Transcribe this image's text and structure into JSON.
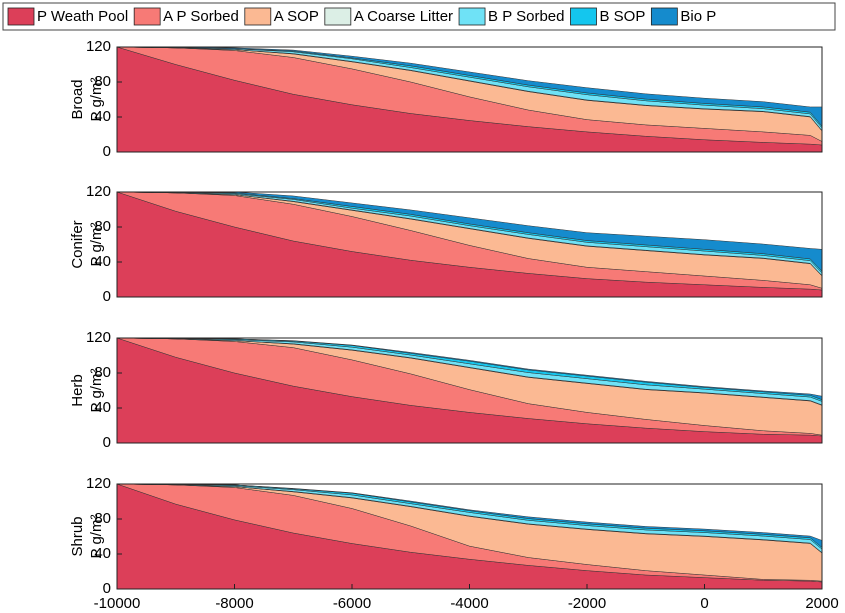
{
  "chart_data": [
    {
      "type": "area",
      "ylabel": "Broad",
      "yunit": "P g/m²",
      "x": [
        -10000,
        -9000,
        -8000,
        -7000,
        -6000,
        -5000,
        -4000,
        -3000,
        -2000,
        -1000,
        0,
        1000,
        1800,
        2000
      ],
      "xlim": [
        -10000,
        2000
      ],
      "ylim": [
        0,
        120
      ],
      "yticks": [
        0,
        40,
        80,
        120
      ],
      "series": [
        {
          "name": "P Weath Pool",
          "color": "#dc3f59",
          "values": [
            120,
            100,
            82,
            66,
            54,
            44,
            36,
            29,
            23,
            18,
            14,
            11,
            9,
            8
          ]
        },
        {
          "name": "A P Sorbed",
          "color": "#f77a76",
          "values": [
            0,
            19,
            34,
            42,
            41,
            36,
            27,
            19,
            14,
            13,
            13,
            12,
            10,
            4
          ]
        },
        {
          "name": "A SOP",
          "color": "#fbb993",
          "values": [
            0,
            0,
            1,
            4,
            8,
            13,
            18,
            21,
            22,
            22,
            22,
            23,
            21,
            12
          ]
        },
        {
          "name": "A Coarse Litter",
          "color": "#dcefe6",
          "values": [
            0,
            0,
            0,
            0.5,
            0.5,
            0.5,
            0.5,
            0.5,
            0.5,
            0.5,
            0.5,
            0.5,
            0.5,
            0.5
          ]
        },
        {
          "name": "B P Sorbed",
          "color": "#6fe2f6",
          "values": [
            0,
            0.5,
            1,
            2,
            3,
            3,
            4,
            5,
            6,
            5,
            4,
            3,
            3,
            3
          ]
        },
        {
          "name": "B SOP",
          "color": "#14c6ee",
          "values": [
            0,
            0,
            0,
            1,
            1,
            2,
            2,
            2,
            2,
            2,
            2,
            2,
            2,
            2
          ]
        },
        {
          "name": "Bio P",
          "color": "#158bcd",
          "values": [
            0,
            0.5,
            1,
            1,
            2,
            3,
            4,
            5,
            6,
            6,
            6,
            6,
            6,
            22
          ]
        }
      ]
    },
    {
      "type": "area",
      "ylabel": "Conifer",
      "yunit": "P g/m²",
      "x": [
        -10000,
        -9000,
        -8000,
        -7000,
        -6000,
        -5000,
        -4000,
        -3000,
        -2000,
        -1000,
        0,
        1000,
        1800,
        2000
      ],
      "xlim": [
        -10000,
        2000
      ],
      "ylim": [
        0,
        120
      ],
      "yticks": [
        0,
        40,
        80,
        120
      ],
      "series": [
        {
          "name": "P Weath Pool",
          "color": "#dc3f59",
          "values": [
            120,
            98,
            80,
            64,
            52,
            42,
            34,
            27,
            21,
            17,
            14,
            11,
            9,
            8
          ]
        },
        {
          "name": "A P Sorbed",
          "color": "#f77a76",
          "values": [
            0,
            21,
            36,
            42,
            40,
            34,
            25,
            17,
            13,
            12,
            10,
            8,
            5,
            2
          ]
        },
        {
          "name": "A SOP",
          "color": "#fbb993",
          "values": [
            0,
            0,
            1,
            3,
            7,
            13,
            19,
            23,
            24,
            24,
            24,
            25,
            24,
            14
          ]
        },
        {
          "name": "A Coarse Litter",
          "color": "#dcefe6",
          "values": [
            0,
            0,
            0,
            0.5,
            0.5,
            0.5,
            0.5,
            0.5,
            0.5,
            0.5,
            0.5,
            0.5,
            0.5,
            0.5
          ]
        },
        {
          "name": "B P Sorbed",
          "color": "#6fe2f6",
          "values": [
            0,
            0.5,
            1,
            2,
            2,
            3,
            3,
            4,
            4,
            4,
            4,
            3,
            3,
            3
          ]
        },
        {
          "name": "B SOP",
          "color": "#14c6ee",
          "values": [
            0,
            0,
            1,
            1,
            2,
            2,
            2,
            2,
            2,
            2,
            2,
            2,
            2,
            2
          ]
        },
        {
          "name": "Bio P",
          "color": "#158bcd",
          "values": [
            0,
            0.5,
            1,
            3,
            4,
            5,
            7,
            8,
            9,
            10,
            11,
            11,
            12,
            25
          ]
        }
      ]
    },
    {
      "type": "area",
      "ylabel": "Herb",
      "yunit": "P g/m²",
      "x": [
        -10000,
        -9000,
        -8000,
        -7000,
        -6000,
        -5000,
        -4000,
        -3000,
        -2000,
        -1000,
        0,
        1000,
        1800,
        2000
      ],
      "xlim": [
        -10000,
        2000
      ],
      "ylim": [
        0,
        120
      ],
      "yticks": [
        0,
        40,
        80,
        120
      ],
      "series": [
        {
          "name": "P Weath Pool",
          "color": "#dc3f59",
          "values": [
            120,
            98,
            80,
            65,
            53,
            43,
            35,
            28,
            22,
            17,
            13,
            10,
            9,
            8
          ]
        },
        {
          "name": "A P Sorbed",
          "color": "#f77a76",
          "values": [
            0,
            21,
            36,
            44,
            42,
            36,
            26,
            17,
            13,
            10,
            7,
            4,
            2,
            1
          ]
        },
        {
          "name": "A SOP",
          "color": "#fbb993",
          "values": [
            0,
            0,
            1,
            4,
            11,
            18,
            25,
            30,
            33,
            34,
            37,
            38,
            37,
            34
          ]
        },
        {
          "name": "A Coarse Litter",
          "color": "#dcefe6",
          "values": [
            0,
            0,
            0,
            0.5,
            0.5,
            0.5,
            0.5,
            0.5,
            0.5,
            0.5,
            0.5,
            0.5,
            0.5,
            0.5
          ]
        },
        {
          "name": "B P Sorbed",
          "color": "#6fe2f6",
          "values": [
            0,
            0.5,
            1,
            2,
            3,
            3,
            4,
            5,
            5,
            5,
            4,
            4,
            4,
            4
          ]
        },
        {
          "name": "B SOP",
          "color": "#14c6ee",
          "values": [
            0,
            0,
            1,
            1,
            2,
            2,
            3,
            3,
            3,
            3,
            2,
            2,
            2,
            2
          ]
        },
        {
          "name": "Bio P",
          "color": "#158bcd",
          "values": [
            0,
            0,
            0,
            0.5,
            0.5,
            1,
            1,
            1,
            1,
            1,
            1,
            1,
            1.5,
            4
          ]
        }
      ]
    },
    {
      "type": "area",
      "ylabel": "Shrub",
      "yunit": "P g/m²",
      "x": [
        -10000,
        -9000,
        -8000,
        -7000,
        -6000,
        -5000,
        -4000,
        -3000,
        -2000,
        -1000,
        0,
        1000,
        1800,
        2000
      ],
      "xlim": [
        -10000,
        2000
      ],
      "ylim": [
        0,
        120
      ],
      "yticks": [
        0,
        40,
        80,
        120
      ],
      "xticks": [
        -10000,
        -8000,
        -6000,
        -4000,
        -2000,
        0,
        2000
      ],
      "series": [
        {
          "name": "P Weath Pool",
          "color": "#dc3f59",
          "values": [
            120,
            97,
            79,
            64,
            52,
            42,
            34,
            27,
            21,
            16,
            13,
            10,
            9,
            8
          ]
        },
        {
          "name": "A P Sorbed",
          "color": "#f77a76",
          "values": [
            0,
            22,
            37,
            43,
            40,
            30,
            15,
            9,
            7,
            5,
            3,
            1,
            1,
            1
          ]
        },
        {
          "name": "A SOP",
          "color": "#fbb993",
          "values": [
            0,
            0,
            1,
            4,
            12,
            22,
            34,
            38,
            40,
            42,
            44,
            45,
            42,
            32
          ]
        },
        {
          "name": "A Coarse Litter",
          "color": "#dcefe6",
          "values": [
            0,
            0,
            0,
            0.5,
            0.5,
            0.5,
            0.5,
            0.5,
            0.5,
            0.5,
            0.5,
            0.5,
            0.5,
            0.5
          ]
        },
        {
          "name": "B P Sorbed",
          "color": "#6fe2f6",
          "values": [
            0,
            0.5,
            1,
            2,
            3,
            3,
            4,
            4,
            4,
            4,
            4,
            4,
            4,
            4
          ]
        },
        {
          "name": "B SOP",
          "color": "#14c6ee",
          "values": [
            0,
            0,
            1,
            1,
            2,
            2,
            2,
            2,
            2,
            2,
            2,
            2,
            2,
            2
          ]
        },
        {
          "name": "Bio P",
          "color": "#158bcd",
          "values": [
            0,
            0,
            0,
            0.5,
            0.5,
            1,
            1,
            2,
            2,
            2,
            2,
            2,
            2,
            8
          ]
        }
      ]
    }
  ]
}
